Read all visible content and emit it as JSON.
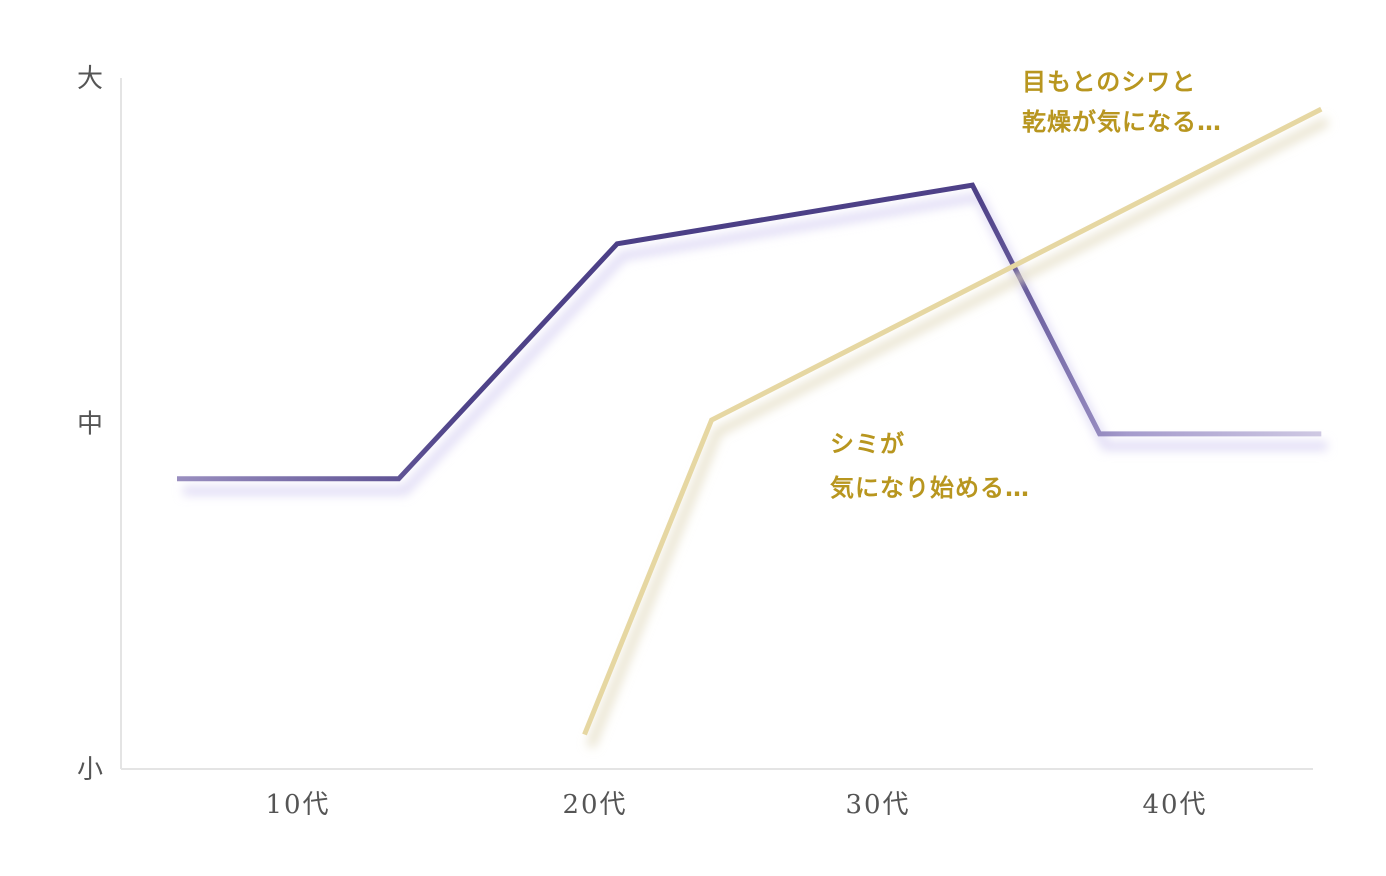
{
  "chart_data": {
    "type": "line",
    "categories": [
      "10代",
      "20代",
      "30代",
      "40代"
    ],
    "y_levels": [
      "小",
      "中",
      "大"
    ],
    "ylim": [
      0,
      2
    ],
    "grid": false,
    "series": [
      {
        "color": "#4b3f86",
        "points": [
          {
            "x": 0.0,
            "y": 0.84
          },
          {
            "x": 0.68,
            "y": 0.84
          },
          {
            "x": 1.35,
            "y": 1.52
          },
          {
            "x": 2.44,
            "y": 1.69
          },
          {
            "x": 2.83,
            "y": 0.97
          },
          {
            "x": 3.51,
            "y": 0.97
          }
        ]
      },
      {
        "color": "#e6d7a2",
        "points": [
          {
            "x": 1.25,
            "y": 0.1
          },
          {
            "x": 1.64,
            "y": 1.01
          },
          {
            "x": 3.51,
            "y": 1.91
          }
        ]
      }
    ],
    "annotations": [
      {
        "lines": [
          "シミが",
          "気になり始める…"
        ],
        "color": "#b8961f"
      },
      {
        "lines": [
          "目もとのシワと",
          "乾燥が気になる…"
        ],
        "color": "#b8961f"
      }
    ]
  }
}
